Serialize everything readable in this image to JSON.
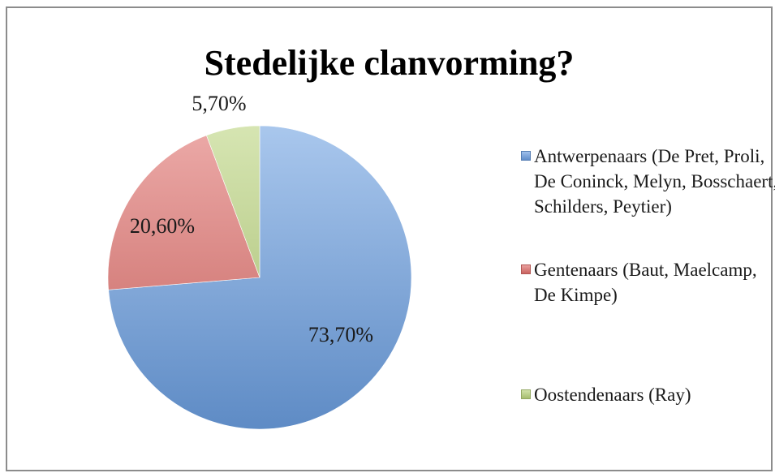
{
  "chart_data": {
    "type": "pie",
    "title": "Stedelijke clanvorming?",
    "categories": [
      "Antwerpenaars (De Pret, Proli, De Coninck, Melyn, Bosschaert, Schilders, Peytier)",
      "Gentenaars (Baut, Maelcamp, De Kimpe)",
      "Oostendenaars (Ray)"
    ],
    "values": [
      73.7,
      20.6,
      5.7
    ],
    "data_labels": [
      "73,70%",
      "20,60%",
      "5,70%"
    ],
    "colors": [
      "#6b9ee0",
      "#df6d69",
      "#b8d27a"
    ],
    "legend_position": "right"
  }
}
